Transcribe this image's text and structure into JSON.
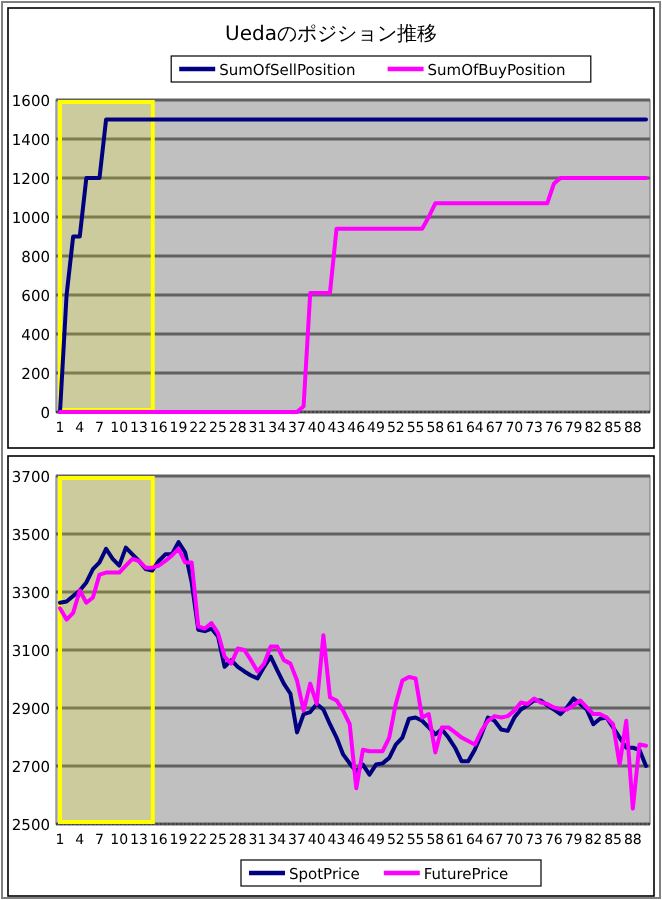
{
  "chart_data": [
    {
      "type": "line",
      "title": "Uedaのポジション推移",
      "categories": [
        "1",
        null,
        null,
        "4",
        null,
        null,
        "7",
        null,
        null,
        "10",
        null,
        null,
        "13",
        null,
        null,
        "16",
        null,
        null,
        "19",
        null,
        null,
        "22",
        null,
        null,
        "25",
        null,
        null,
        "28",
        null,
        null,
        "31",
        null,
        null,
        "34",
        null,
        null,
        "37",
        null,
        null,
        "40",
        null,
        null,
        "43",
        null,
        null,
        "46",
        null,
        null,
        "49",
        null,
        null,
        "52",
        null,
        null,
        "55",
        null,
        null,
        "58",
        null,
        null,
        "61",
        null,
        null,
        "64",
        null,
        null,
        "67",
        null,
        null,
        "70",
        null,
        null,
        "73",
        null,
        null,
        "76",
        null,
        null,
        "79",
        null,
        null,
        "82",
        null,
        null,
        "85",
        null,
        null,
        "88",
        null,
        null
      ],
      "series": [
        {
          "name": "SumOfSellPosition",
          "color": "#000080",
          "values": [
            0,
            600,
            900,
            900,
            1200,
            1200,
            1200,
            1500,
            1500,
            1500,
            1500,
            1500,
            1500,
            1500,
            1500,
            1500,
            1500,
            1500,
            1500,
            1500,
            1500,
            1500,
            1500,
            1500,
            1500,
            1500,
            1500,
            1500,
            1500,
            1500,
            1500,
            1500,
            1500,
            1500,
            1500,
            1500,
            1500,
            1500,
            1500,
            1500,
            1500,
            1500,
            1500,
            1500,
            1500,
            1500,
            1500,
            1500,
            1500,
            1500,
            1500,
            1500,
            1500,
            1500,
            1500,
            1500,
            1500,
            1500,
            1500,
            1500,
            1500,
            1500,
            1500,
            1500,
            1500,
            1500,
            1500,
            1500,
            1500,
            1500,
            1500,
            1500,
            1500,
            1500,
            1500,
            1500,
            1500,
            1500,
            1500,
            1500,
            1500,
            1500,
            1500,
            1500,
            1500,
            1500,
            1500,
            1500,
            1500,
            1500
          ]
        },
        {
          "name": "SumOfBuyPosition",
          "color": "#ff00ff",
          "values": [
            0,
            0,
            0,
            0,
            0,
            0,
            0,
            0,
            0,
            0,
            0,
            0,
            0,
            0,
            0,
            0,
            0,
            0,
            0,
            0,
            0,
            0,
            0,
            0,
            0,
            0,
            0,
            0,
            0,
            0,
            0,
            0,
            0,
            0,
            0,
            0,
            0,
            30,
            610,
            610,
            610,
            610,
            940,
            940,
            940,
            940,
            940,
            940,
            940,
            940,
            940,
            940,
            940,
            940,
            940,
            940,
            1000,
            1070,
            1070,
            1070,
            1070,
            1070,
            1070,
            1070,
            1070,
            1070,
            1070,
            1070,
            1070,
            1070,
            1070,
            1070,
            1070,
            1070,
            1070,
            1170,
            1200,
            1200,
            1200,
            1200,
            1200,
            1200,
            1200,
            1200,
            1200,
            1200,
            1200,
            1200,
            1200,
            1200
          ]
        }
      ],
      "ylim": [
        0,
        1600
      ],
      "yticks": [
        0,
        200,
        400,
        600,
        800,
        1000,
        1200,
        1400,
        1600
      ],
      "grid": "y",
      "legend": "top",
      "marker": "none",
      "line_style": "solid",
      "bands": [
        {
          "axis": "x",
          "from": "1",
          "to": "16",
          "color": "#ffff00"
        }
      ]
    },
    {
      "type": "line",
      "categories": [
        "1",
        null,
        null,
        "4",
        null,
        null,
        "7",
        null,
        null,
        "10",
        null,
        null,
        "13",
        null,
        null,
        "16",
        null,
        null,
        "19",
        null,
        null,
        "22",
        null,
        null,
        "25",
        null,
        null,
        "28",
        null,
        null,
        "31",
        null,
        null,
        "34",
        null,
        null,
        "37",
        null,
        null,
        "40",
        null,
        null,
        "43",
        null,
        null,
        "46",
        null,
        null,
        "49",
        null,
        null,
        "52",
        null,
        null,
        "55",
        null,
        null,
        "58",
        null,
        null,
        "61",
        null,
        null,
        "64",
        null,
        null,
        "67",
        null,
        null,
        "70",
        null,
        null,
        "73",
        null,
        null,
        "76",
        null,
        null,
        "79",
        null,
        null,
        "82",
        null,
        null,
        "85",
        null,
        null,
        "88",
        null,
        null
      ],
      "series": [
        {
          "name": "SpotPrice",
          "color": "#000080",
          "values": [
            3263,
            3267,
            3286,
            3305,
            3333,
            3379,
            3402,
            3449,
            3414,
            3391,
            3453,
            3430,
            3407,
            3379,
            3374,
            3407,
            3430,
            3430,
            3472,
            3437,
            3333,
            3170,
            3165,
            3174,
            3147,
            3042,
            3065,
            3042,
            3026,
            3012,
            3002,
            3042,
            3077,
            3030,
            2984,
            2949,
            2816,
            2879,
            2886,
            2914,
            2895,
            2844,
            2798,
            2740,
            2709,
            2681,
            2705,
            2670,
            2705,
            2709,
            2728,
            2774,
            2798,
            2863,
            2867,
            2856,
            2833,
            2809,
            2826,
            2798,
            2763,
            2716,
            2716,
            2756,
            2809,
            2867,
            2856,
            2826,
            2821,
            2867,
            2895,
            2909,
            2926,
            2926,
            2909,
            2895,
            2879,
            2902,
            2933,
            2914,
            2895,
            2844,
            2863,
            2867,
            2833,
            2798,
            2763,
            2763,
            2756,
            2700
          ]
        },
        {
          "name": "FuturePrice",
          "color": "#ff00ff",
          "values": [
            3244,
            3205,
            3228,
            3305,
            3263,
            3281,
            3360,
            3367,
            3367,
            3367,
            3391,
            3414,
            3407,
            3384,
            3384,
            3391,
            3407,
            3426,
            3449,
            3402,
            3402,
            3181,
            3174,
            3193,
            3158,
            3077,
            3053,
            3105,
            3100,
            3065,
            3026,
            3053,
            3112,
            3112,
            3065,
            3053,
            2995,
            2891,
            2984,
            2914,
            3151,
            2937,
            2926,
            2891,
            2844,
            2623,
            2756,
            2751,
            2751,
            2751,
            2798,
            2914,
            2995,
            3007,
            3002,
            2867,
            2879,
            2747,
            2833,
            2833,
            2816,
            2798,
            2786,
            2774,
            2821,
            2856,
            2872,
            2867,
            2872,
            2891,
            2919,
            2914,
            2933,
            2919,
            2914,
            2902,
            2895,
            2895,
            2909,
            2926,
            2902,
            2879,
            2879,
            2867,
            2844,
            2705,
            2856,
            2553,
            2774,
            2770
          ]
        }
      ],
      "ylim": [
        2500,
        3700
      ],
      "yticks": [
        2500,
        2700,
        2900,
        3100,
        3300,
        3500,
        3700
      ],
      "grid": "y",
      "legend": "bottom",
      "marker": "none",
      "line_style": "solid",
      "bands": [
        {
          "axis": "x",
          "from": "1",
          "to": "16",
          "color": "#ffff00"
        }
      ]
    }
  ]
}
